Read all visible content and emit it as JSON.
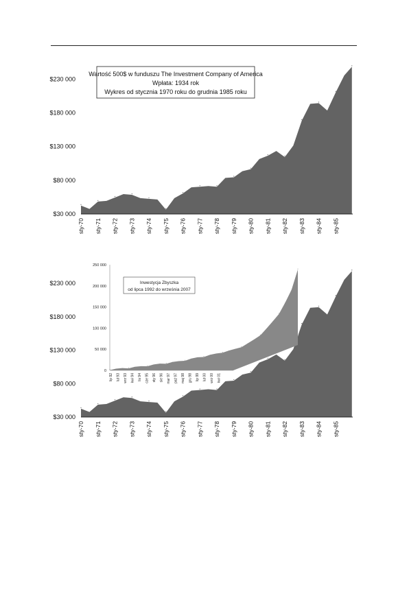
{
  "chart_data": [
    {
      "type": "area",
      "title": [
        "Wartość 500$ w funduszu The Investment Company of America",
        "Wpłata: 1934 rok",
        "Wykres od stycznia 1970 roku do grudnia 1985 roku"
      ],
      "y_ticks": [
        "$30 000",
        "$80 000",
        "$130 000",
        "$180 000",
        "$230 000"
      ],
      "ylim": [
        30000,
        260000
      ],
      "x_ticks": [
        "sty-70",
        "sty-71",
        "sty-72",
        "sty-73",
        "sty-74",
        "sty-75",
        "sty-76",
        "sty-77",
        "sty-78",
        "sty-79",
        "sty-80",
        "sty-81",
        "sty-82",
        "sty-83",
        "sty-84",
        "sty-85"
      ],
      "x": [
        1970.0,
        1970.5,
        1971.0,
        1971.5,
        1972.0,
        1972.5,
        1973.0,
        1973.5,
        1974.0,
        1974.5,
        1975.0,
        1975.5,
        1976.0,
        1976.5,
        1977.0,
        1977.5,
        1978.0,
        1978.5,
        1979.0,
        1979.5,
        1980.0,
        1980.5,
        1981.0,
        1981.5,
        1982.0,
        1982.5,
        1983.0,
        1983.5,
        1984.0,
        1984.5,
        1985.0,
        1985.5,
        1985.95
      ],
      "values": [
        44000,
        36000,
        50000,
        48000,
        56000,
        58000,
        60000,
        52000,
        54000,
        50000,
        38000,
        52000,
        62000,
        68000,
        72000,
        70000,
        72000,
        82000,
        86000,
        92000,
        98000,
        110000,
        118000,
        122000,
        116000,
        130000,
        170000,
        192000,
        196000,
        182000,
        212000,
        234000,
        250000
      ],
      "color": "#636363"
    },
    {
      "type": "area",
      "y_ticks": [
        "$30 000",
        "$80 000",
        "$130 000",
        "$180 000",
        "$230 000"
      ],
      "ylim": [
        30000,
        260000
      ],
      "x_ticks": [
        "sty-70",
        "sty-71",
        "sty-72",
        "sty-73",
        "sty-74",
        "sty-75",
        "sty-76",
        "sty-77",
        "sty-78",
        "sty-79",
        "sty-80",
        "sty-81",
        "sty-82",
        "sty-83",
        "sty-84",
        "sty-85"
      ],
      "x": [
        1970.0,
        1970.5,
        1971.0,
        1971.5,
        1972.0,
        1972.5,
        1973.0,
        1973.5,
        1974.0,
        1974.5,
        1975.0,
        1975.5,
        1976.0,
        1976.5,
        1977.0,
        1977.5,
        1978.0,
        1978.5,
        1979.0,
        1979.5,
        1980.0,
        1980.5,
        1981.0,
        1981.5,
        1982.0,
        1982.5,
        1983.0,
        1983.5,
        1984.0,
        1984.5,
        1985.0,
        1985.5,
        1985.95
      ],
      "values": [
        44000,
        36000,
        50000,
        48000,
        56000,
        58000,
        60000,
        52000,
        54000,
        50000,
        38000,
        52000,
        62000,
        68000,
        72000,
        70000,
        72000,
        82000,
        86000,
        92000,
        98000,
        110000,
        118000,
        122000,
        116000,
        130000,
        170000,
        192000,
        196000,
        182000,
        212000,
        234000,
        250000
      ],
      "color": "#636363",
      "inset": {
        "type": "area",
        "title": [
          "Inwestycja Zbyszka",
          "od lipca 1992 do września 2007"
        ],
        "y_ticks": [
          "0",
          "50 000",
          "100 000",
          "150 000",
          "200 000",
          "250 000"
        ],
        "ylim": [
          0,
          250000
        ],
        "x_ticks": [
          "lip 92",
          "lut 93",
          "wrz 93",
          "kwi 94",
          "lis 94",
          "cze 95",
          "sty 96",
          "sie 96",
          "mar 97",
          "paź 97",
          "maj 98",
          "gru 98",
          "lip 99",
          "lut 00",
          "wrz 00",
          "kwi 01"
        ],
        "x": [
          0,
          1,
          2,
          3,
          4,
          5,
          6,
          7,
          8,
          9,
          10,
          11,
          12,
          13,
          14,
          15,
          16,
          17,
          18,
          19,
          20,
          21,
          22,
          23,
          24,
          25,
          26,
          27,
          28,
          29,
          30
        ],
        "values": [
          2000,
          3000,
          4500,
          6000,
          7500,
          9000,
          11000,
          13000,
          15000,
          17000,
          19000,
          21000,
          24000,
          27000,
          30000,
          33000,
          36000,
          39000,
          43000,
          46000,
          50000,
          56000,
          63000,
          72000,
          84000,
          98000,
          115000,
          135000,
          160000,
          190000,
          240000
        ],
        "color": "#888888"
      }
    }
  ]
}
